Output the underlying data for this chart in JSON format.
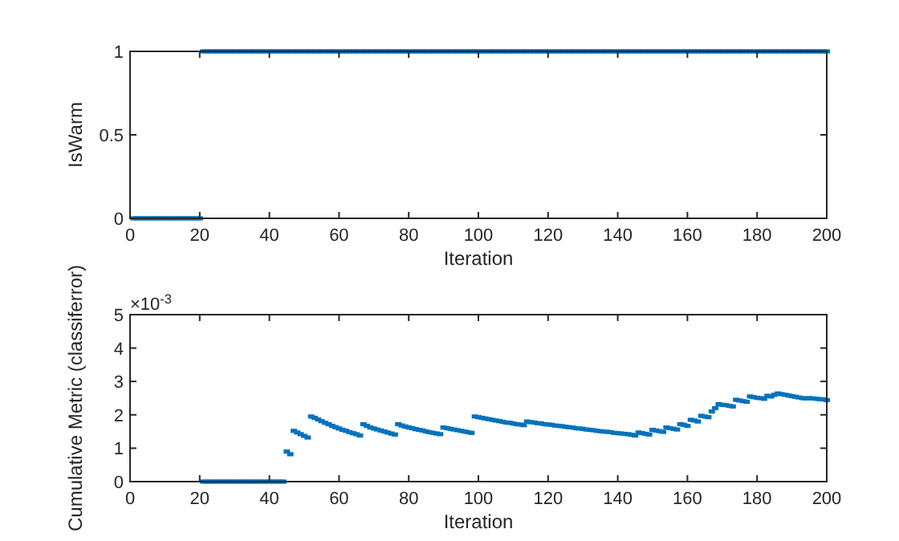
{
  "chart_data": [
    {
      "type": "scatter",
      "xlabel": "Iteration",
      "ylabel": "IsWarm",
      "xlim": [
        0,
        200
      ],
      "xticks": [
        0,
        20,
        40,
        60,
        80,
        100,
        120,
        140,
        160,
        180,
        200
      ],
      "ylim": [
        0,
        1
      ],
      "yticks": [
        0,
        0.5,
        1
      ],
      "grid": false,
      "marker": "square",
      "series": [
        {
          "color": "#0072bd",
          "x": [
            1,
            2,
            3,
            4,
            5,
            6,
            7,
            8,
            9,
            10,
            11,
            12,
            13,
            14,
            15,
            16,
            17,
            18,
            19,
            20,
            21,
            22,
            23,
            24,
            25,
            26,
            27,
            28,
            29,
            30,
            31,
            32,
            33,
            34,
            35,
            36,
            37,
            38,
            39,
            40,
            41,
            42,
            43,
            44,
            45,
            46,
            47,
            48,
            49,
            50,
            51,
            52,
            53,
            54,
            55,
            56,
            57,
            58,
            59,
            60,
            61,
            62,
            63,
            64,
            65,
            66,
            67,
            68,
            69,
            70,
            71,
            72,
            73,
            74,
            75,
            76,
            77,
            78,
            79,
            80,
            81,
            82,
            83,
            84,
            85,
            86,
            87,
            88,
            89,
            90,
            91,
            92,
            93,
            94,
            95,
            96,
            97,
            98,
            99,
            100,
            101,
            102,
            103,
            104,
            105,
            106,
            107,
            108,
            109,
            110,
            111,
            112,
            113,
            114,
            115,
            116,
            117,
            118,
            119,
            120,
            121,
            122,
            123,
            124,
            125,
            126,
            127,
            128,
            129,
            130,
            131,
            132,
            133,
            134,
            135,
            136,
            137,
            138,
            139,
            140,
            141,
            142,
            143,
            144,
            145,
            146,
            147,
            148,
            149,
            150,
            151,
            152,
            153,
            154,
            155,
            156,
            157,
            158,
            159,
            160,
            161,
            162,
            163,
            164,
            165,
            166,
            167,
            168,
            169,
            170,
            171,
            172,
            173,
            174,
            175,
            176,
            177,
            178,
            179,
            180,
            181,
            182,
            183,
            184,
            185,
            186,
            187,
            188,
            189,
            190,
            191,
            192,
            193,
            194,
            195,
            196,
            197,
            198,
            199,
            200
          ],
          "values": [
            0,
            0,
            0,
            0,
            0,
            0,
            0,
            0,
            0,
            0,
            0,
            0,
            0,
            0,
            0,
            0,
            0,
            0,
            0,
            0,
            1,
            1,
            1,
            1,
            1,
            1,
            1,
            1,
            1,
            1,
            1,
            1,
            1,
            1,
            1,
            1,
            1,
            1,
            1,
            1,
            1,
            1,
            1,
            1,
            1,
            1,
            1,
            1,
            1,
            1,
            1,
            1,
            1,
            1,
            1,
            1,
            1,
            1,
            1,
            1,
            1,
            1,
            1,
            1,
            1,
            1,
            1,
            1,
            1,
            1,
            1,
            1,
            1,
            1,
            1,
            1,
            1,
            1,
            1,
            1,
            1,
            1,
            1,
            1,
            1,
            1,
            1,
            1,
            1,
            1,
            1,
            1,
            1,
            1,
            1,
            1,
            1,
            1,
            1,
            1,
            1,
            1,
            1,
            1,
            1,
            1,
            1,
            1,
            1,
            1,
            1,
            1,
            1,
            1,
            1,
            1,
            1,
            1,
            1,
            1,
            1,
            1,
            1,
            1,
            1,
            1,
            1,
            1,
            1,
            1,
            1,
            1,
            1,
            1,
            1,
            1,
            1,
            1,
            1,
            1,
            1,
            1,
            1,
            1,
            1,
            1,
            1,
            1,
            1,
            1,
            1,
            1,
            1,
            1,
            1,
            1,
            1,
            1,
            1,
            1,
            1,
            1,
            1,
            1,
            1,
            1,
            1,
            1,
            1,
            1,
            1,
            1,
            1,
            1,
            1,
            1,
            1,
            1,
            1,
            1,
            1,
            1,
            1,
            1,
            1,
            1,
            1,
            1,
            1,
            1,
            1,
            1,
            1,
            1,
            1,
            1,
            1,
            1,
            1,
            1
          ]
        }
      ]
    },
    {
      "type": "scatter",
      "xlabel": "Iteration",
      "ylabel": "Cumulative Metric (classiferror)",
      "annotations": [
        "×10$^{-3}$"
      ],
      "xlim": [
        0,
        200
      ],
      "xticks": [
        0,
        20,
        40,
        60,
        80,
        100,
        120,
        140,
        160,
        180,
        200
      ],
      "ylim": [
        0,
        5
      ],
      "yticks": [
        0,
        1,
        2,
        3,
        4,
        5
      ],
      "grid": false,
      "marker": "square",
      "series": [
        {
          "color": "#0072bd",
          "x": [
            21,
            22,
            23,
            24,
            25,
            26,
            27,
            28,
            29,
            30,
            31,
            32,
            33,
            34,
            35,
            36,
            37,
            38,
            39,
            40,
            41,
            42,
            43,
            44,
            45,
            46,
            47,
            48,
            49,
            50,
            51,
            52,
            53,
            54,
            55,
            56,
            57,
            58,
            59,
            60,
            61,
            62,
            63,
            64,
            65,
            66,
            67,
            68,
            69,
            70,
            71,
            72,
            73,
            74,
            75,
            76,
            77,
            78,
            79,
            80,
            81,
            82,
            83,
            84,
            85,
            86,
            87,
            88,
            89,
            90,
            91,
            92,
            93,
            94,
            95,
            96,
            97,
            98,
            99,
            100,
            101,
            102,
            103,
            104,
            105,
            106,
            107,
            108,
            109,
            110,
            111,
            112,
            113,
            114,
            115,
            116,
            117,
            118,
            119,
            120,
            121,
            122,
            123,
            124,
            125,
            126,
            127,
            128,
            129,
            130,
            131,
            132,
            133,
            134,
            135,
            136,
            137,
            138,
            139,
            140,
            141,
            142,
            143,
            144,
            145,
            146,
            147,
            148,
            149,
            150,
            151,
            152,
            153,
            154,
            155,
            156,
            157,
            158,
            159,
            160,
            161,
            162,
            163,
            164,
            165,
            166,
            167,
            168,
            169,
            170,
            171,
            172,
            173,
            174,
            175,
            176,
            177,
            178,
            179,
            180,
            181,
            182,
            183,
            184,
            185,
            186,
            187,
            188,
            189,
            190,
            191,
            192,
            193,
            194,
            195,
            196,
            197,
            198,
            199,
            200
          ],
          "values": [
            0,
            0,
            0,
            0,
            0,
            0,
            0,
            0,
            0,
            0,
            0,
            0,
            0,
            0,
            0,
            0,
            0,
            0,
            0,
            0,
            0,
            0,
            0,
            0,
            0.9,
            0.82,
            1.52,
            1.47,
            1.42,
            1.37,
            1.32,
            1.95,
            1.91,
            1.86,
            1.81,
            1.76,
            1.72,
            1.67,
            1.63,
            1.59,
            1.55,
            1.52,
            1.48,
            1.45,
            1.42,
            1.38,
            1.72,
            1.67,
            1.62,
            1.59,
            1.56,
            1.53,
            1.5,
            1.47,
            1.44,
            1.41,
            1.72,
            1.68,
            1.65,
            1.62,
            1.6,
            1.57,
            1.55,
            1.53,
            1.5,
            1.48,
            1.46,
            1.44,
            1.42,
            1.62,
            1.6,
            1.58,
            1.56,
            1.54,
            1.52,
            1.5,
            1.48,
            1.46,
            1.95,
            1.93,
            1.91,
            1.89,
            1.87,
            1.85,
            1.83,
            1.81,
            1.79,
            1.77,
            1.76,
            1.74,
            1.72,
            1.71,
            1.69,
            1.8,
            1.78,
            1.77,
            1.75,
            1.74,
            1.72,
            1.71,
            1.7,
            1.68,
            1.67,
            1.66,
            1.64,
            1.63,
            1.62,
            1.6,
            1.59,
            1.58,
            1.56,
            1.55,
            1.54,
            1.52,
            1.51,
            1.5,
            1.49,
            1.48,
            1.46,
            1.45,
            1.44,
            1.43,
            1.42,
            1.4,
            1.38,
            1.47,
            1.45,
            1.43,
            1.41,
            1.55,
            1.53,
            1.51,
            1.49,
            1.62,
            1.6,
            1.58,
            1.56,
            1.72,
            1.7,
            1.67,
            1.85,
            1.83,
            1.8,
            1.97,
            1.95,
            1.93,
            2.1,
            2.2,
            2.32,
            2.3,
            2.29,
            2.27,
            2.25,
            2.45,
            2.43,
            2.41,
            2.39,
            2.55,
            2.53,
            2.51,
            2.5,
            2.48,
            2.57,
            2.55,
            2.6,
            2.64,
            2.62,
            2.6,
            2.58,
            2.56,
            2.54,
            2.52,
            2.5,
            2.49,
            2.5,
            2.49,
            2.48,
            2.47,
            2.46,
            2.44
          ]
        }
      ]
    }
  ]
}
